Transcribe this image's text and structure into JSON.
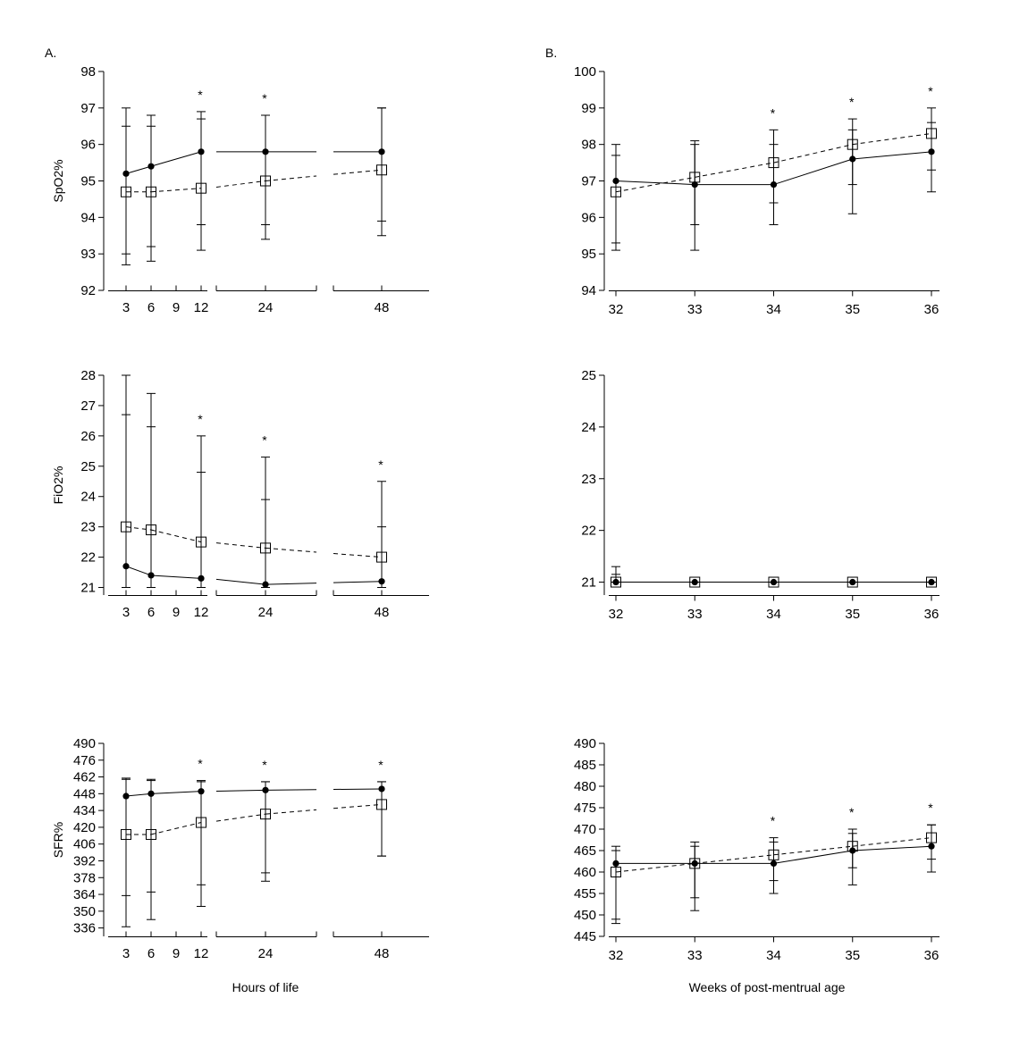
{
  "panel_labels": {
    "A": "A.",
    "B": "B."
  },
  "chart_data": [
    {
      "id": "a_spo2",
      "type": "line",
      "panel": "A",
      "title": "",
      "xlabel": "",
      "ylabel": "SpO2%",
      "ylim": [
        92,
        98
      ],
      "yticks": [
        "92",
        "93",
        "94",
        "95",
        "96",
        "97",
        "98"
      ],
      "xticks": [
        "3",
        "6",
        "9",
        "12",
        "24",
        "48"
      ],
      "x": [
        3,
        6,
        12,
        24,
        48
      ],
      "significant_at": [
        12,
        24
      ],
      "series": [
        {
          "style": "solid-filled-circle",
          "values": [
            95.2,
            95.4,
            95.8,
            95.8,
            95.8
          ],
          "upper": [
            97.0,
            96.8,
            96.9,
            96.8,
            97.0
          ],
          "lower": [
            93.0,
            93.2,
            93.8,
            93.8,
            93.9
          ]
        },
        {
          "style": "dashed-open-square",
          "values": [
            94.7,
            94.7,
            94.8,
            95.0,
            95.3
          ],
          "upper": [
            96.5,
            96.5,
            96.7,
            96.8,
            97.0
          ],
          "lower": [
            92.7,
            92.8,
            93.1,
            93.4,
            93.5
          ]
        }
      ]
    },
    {
      "id": "b_spo2",
      "type": "line",
      "panel": "B",
      "title": "",
      "xlabel": "",
      "ylabel": "",
      "ylim": [
        94,
        100
      ],
      "yticks": [
        "94",
        "95",
        "96",
        "97",
        "98",
        "99",
        "100"
      ],
      "xticks": [
        "32",
        "33",
        "34",
        "35",
        "36"
      ],
      "x": [
        32,
        33,
        34,
        35,
        36
      ],
      "significant_at": [
        34,
        35,
        36
      ],
      "series": [
        {
          "style": "solid-filled-circle",
          "values": [
            97.0,
            96.9,
            96.9,
            97.6,
            97.8
          ],
          "upper": [
            98.0,
            98.1,
            98.0,
            98.4,
            98.6
          ],
          "lower": [
            95.3,
            95.1,
            95.8,
            96.1,
            96.7
          ]
        },
        {
          "style": "dashed-open-square",
          "values": [
            96.7,
            97.1,
            97.5,
            98.0,
            98.3
          ],
          "upper": [
            97.7,
            98.0,
            98.4,
            98.7,
            99.0
          ],
          "lower": [
            95.1,
            95.8,
            96.4,
            96.9,
            97.3
          ]
        }
      ]
    },
    {
      "id": "a_fio2",
      "type": "line",
      "panel": "A",
      "title": "",
      "xlabel": "",
      "ylabel": "FiO2%",
      "ylim": [
        20.75,
        28
      ],
      "yticks": [
        "21",
        "22",
        "23",
        "24",
        "25",
        "26",
        "27",
        "28"
      ],
      "xticks": [
        "3",
        "6",
        "9",
        "12",
        "24",
        "48"
      ],
      "x": [
        3,
        6,
        12,
        24,
        48
      ],
      "significant_at": [
        12,
        24,
        48
      ],
      "series": [
        {
          "style": "solid-filled-circle",
          "values": [
            21.7,
            21.4,
            21.3,
            21.1,
            21.2
          ],
          "upper": [
            26.7,
            26.3,
            24.8,
            23.9,
            23.0
          ],
          "lower": [
            21.0,
            21.0,
            21.0,
            21.0,
            21.0
          ]
        },
        {
          "style": "dashed-open-square",
          "values": [
            23.0,
            22.9,
            22.5,
            22.3,
            22.0
          ],
          "upper": [
            28.0,
            27.4,
            26.0,
            25.3,
            24.5
          ],
          "lower": [
            21.0,
            21.0,
            21.0,
            21.0,
            21.0
          ]
        }
      ]
    },
    {
      "id": "b_fio2",
      "type": "line",
      "panel": "B",
      "title": "",
      "xlabel": "",
      "ylabel": "",
      "ylim": [
        20.75,
        25
      ],
      "yticks": [
        "21",
        "22",
        "23",
        "24",
        "25"
      ],
      "xticks": [
        "32",
        "33",
        "34",
        "35",
        "36"
      ],
      "x": [
        32,
        33,
        34,
        35,
        36
      ],
      "significant_at": [],
      "series": [
        {
          "style": "solid-filled-circle",
          "values": [
            21.0,
            21.0,
            21.0,
            21.0,
            21.0
          ],
          "upper": [
            21.3,
            21.0,
            21.0,
            21.0,
            21.0
          ],
          "lower": [
            21.0,
            21.0,
            21.0,
            21.0,
            21.0
          ]
        },
        {
          "style": "dashed-open-square",
          "values": [
            21.0,
            21.0,
            21.0,
            21.0,
            21.0
          ],
          "upper": [
            21.15,
            21.0,
            21.0,
            21.0,
            21.0
          ],
          "lower": [
            21.0,
            21.0,
            21.0,
            21.0,
            21.0
          ]
        }
      ]
    },
    {
      "id": "a_sfr",
      "type": "line",
      "panel": "A",
      "title": "",
      "xlabel": "Hours of life",
      "ylabel": "SFR%",
      "ylim": [
        329,
        490
      ],
      "yticks": [
        "336",
        "350",
        "364",
        "378",
        "392",
        "406",
        "420",
        "434",
        "448",
        "462",
        "476",
        "490"
      ],
      "xticks": [
        "3",
        "6",
        "9",
        "12",
        "24",
        "48"
      ],
      "x": [
        3,
        6,
        12,
        24,
        48
      ],
      "significant_at": [
        12,
        24,
        48
      ],
      "series": [
        {
          "style": "solid-filled-circle",
          "values": [
            446,
            448,
            450,
            451,
            452
          ],
          "upper": [
            460,
            459,
            458,
            458,
            458
          ],
          "lower": [
            363,
            366,
            372,
            382,
            396
          ]
        },
        {
          "style": "dashed-open-square",
          "values": [
            414,
            414,
            424,
            431,
            439
          ],
          "upper": [
            461,
            460,
            459,
            458,
            458
          ],
          "lower": [
            337,
            343,
            354,
            375,
            396
          ]
        }
      ]
    },
    {
      "id": "b_sfr",
      "type": "line",
      "panel": "B",
      "title": "",
      "xlabel": "Weeks of post-mentrual age",
      "ylabel": "",
      "ylim": [
        445,
        490
      ],
      "yticks": [
        "445",
        "450",
        "455",
        "460",
        "465",
        "470",
        "475",
        "480",
        "485",
        "490"
      ],
      "xticks": [
        "32",
        "33",
        "34",
        "35",
        "36"
      ],
      "x": [
        32,
        33,
        34,
        35,
        36
      ],
      "significant_at": [
        34,
        35,
        36
      ],
      "series": [
        {
          "style": "solid-filled-circle",
          "values": [
            462,
            462,
            462,
            465,
            466
          ],
          "upper": [
            466,
            467,
            468,
            470,
            471
          ],
          "lower": [
            449,
            451,
            455,
            457,
            460
          ]
        },
        {
          "style": "dashed-open-square",
          "values": [
            460,
            462,
            464,
            466,
            468
          ],
          "upper": [
            465,
            466,
            467,
            469,
            471
          ],
          "lower": [
            448,
            454,
            458,
            461,
            463
          ]
        }
      ]
    }
  ],
  "significance_marker": "*"
}
